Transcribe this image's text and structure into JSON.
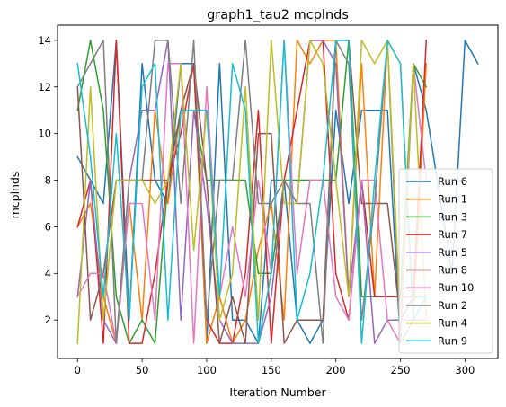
{
  "chart_data": {
    "type": "line",
    "title": "graph1_tau2 mcplnds",
    "xlabel": "Iteration Number",
    "ylabel": "mcplnds",
    "xlim": [
      -15.5,
      325.5
    ],
    "ylim": [
      0.35,
      14.65
    ],
    "x_ticks": [
      0,
      50,
      100,
      150,
      200,
      250,
      300
    ],
    "y_ticks": [
      2,
      4,
      6,
      8,
      10,
      12,
      14
    ],
    "grid": false,
    "legend_position": "lower right",
    "series": [
      {
        "name": "Run 6",
        "color": "#1f77b4",
        "points": [
          [
            0,
            9
          ],
          [
            10,
            8
          ],
          [
            20,
            7
          ],
          [
            30,
            14
          ],
          [
            40,
            2
          ],
          [
            50,
            13
          ],
          [
            60,
            8
          ],
          [
            70,
            7
          ],
          [
            80,
            13
          ],
          [
            90,
            13
          ],
          [
            100,
            1
          ],
          [
            110,
            13
          ],
          [
            120,
            2
          ],
          [
            130,
            2
          ],
          [
            140,
            1
          ],
          [
            150,
            8
          ],
          [
            160,
            8
          ],
          [
            170,
            2
          ],
          [
            180,
            1
          ],
          [
            190,
            2
          ],
          [
            200,
            11
          ],
          [
            210,
            7
          ],
          [
            220,
            11
          ],
          [
            230,
            11
          ],
          [
            240,
            11
          ],
          [
            250,
            1
          ],
          [
            260,
            13
          ],
          [
            270,
            11
          ],
          [
            290,
            4
          ],
          [
            300,
            14
          ],
          [
            310,
            13
          ]
        ]
      },
      {
        "name": "Run 1",
        "color": "#ff7f0e",
        "points": [
          [
            0,
            6
          ],
          [
            10,
            7
          ],
          [
            20,
            3
          ],
          [
            30,
            1
          ],
          [
            40,
            7
          ],
          [
            50,
            2
          ],
          [
            60,
            11
          ],
          [
            70,
            7
          ],
          [
            80,
            11
          ],
          [
            90,
            13
          ],
          [
            100,
            1
          ],
          [
            110,
            3
          ],
          [
            120,
            1
          ],
          [
            130,
            2
          ],
          [
            140,
            5
          ],
          [
            150,
            7
          ],
          [
            160,
            2
          ],
          [
            170,
            14
          ],
          [
            180,
            13
          ],
          [
            190,
            14
          ],
          [
            200,
            14
          ],
          [
            210,
            3
          ],
          [
            220,
            13
          ],
          [
            230,
            3
          ],
          [
            240,
            14
          ],
          [
            250,
            13
          ],
          [
            260,
            2
          ],
          [
            270,
            13
          ]
        ]
      },
      {
        "name": "Run 3",
        "color": "#2ca02c",
        "points": [
          [
            0,
            11
          ],
          [
            10,
            14
          ],
          [
            20,
            11
          ],
          [
            30,
            3
          ],
          [
            40,
            1
          ],
          [
            50,
            2
          ],
          [
            60,
            1
          ],
          [
            70,
            8
          ],
          [
            80,
            11
          ],
          [
            90,
            11
          ],
          [
            100,
            8
          ],
          [
            110,
            8
          ],
          [
            120,
            8
          ],
          [
            130,
            8
          ],
          [
            140,
            4
          ],
          [
            150,
            4
          ],
          [
            160,
            8
          ],
          [
            170,
            8
          ],
          [
            180,
            8
          ],
          [
            190,
            8
          ],
          [
            200,
            8
          ],
          [
            210,
            14
          ],
          [
            220,
            3
          ],
          [
            230,
            3
          ],
          [
            240,
            3
          ],
          [
            250,
            3
          ],
          [
            260,
            13
          ],
          [
            270,
            12
          ]
        ]
      },
      {
        "name": "Run 7",
        "color": "#d62728",
        "points": [
          [
            0,
            6
          ],
          [
            10,
            8
          ],
          [
            20,
            1
          ],
          [
            30,
            14
          ],
          [
            40,
            1
          ],
          [
            50,
            1
          ],
          [
            60,
            4
          ],
          [
            70,
            8
          ],
          [
            80,
            10
          ],
          [
            90,
            13
          ],
          [
            100,
            2
          ],
          [
            110,
            1
          ],
          [
            120,
            1
          ],
          [
            130,
            4
          ],
          [
            140,
            11
          ],
          [
            150,
            1
          ],
          [
            160,
            8
          ],
          [
            170,
            11
          ],
          [
            180,
            14
          ],
          [
            190,
            14
          ],
          [
            200,
            4
          ],
          [
            210,
            2
          ],
          [
            220,
            8
          ],
          [
            230,
            3
          ],
          [
            240,
            3
          ],
          [
            250,
            3
          ],
          [
            260,
            3
          ],
          [
            270,
            14
          ]
        ]
      },
      {
        "name": "Run 5",
        "color": "#9467bd",
        "points": [
          [
            0,
            3
          ],
          [
            10,
            8
          ],
          [
            20,
            2
          ],
          [
            30,
            1
          ],
          [
            40,
            8
          ],
          [
            50,
            11
          ],
          [
            60,
            11
          ],
          [
            70,
            14
          ],
          [
            80,
            2
          ],
          [
            90,
            11
          ],
          [
            100,
            7
          ],
          [
            110,
            2
          ],
          [
            120,
            1
          ],
          [
            130,
            1
          ],
          [
            140,
            1
          ],
          [
            150,
            3
          ],
          [
            160,
            8
          ],
          [
            170,
            7
          ],
          [
            180,
            14
          ],
          [
            190,
            14
          ],
          [
            200,
            13
          ],
          [
            210,
            3
          ],
          [
            220,
            8
          ],
          [
            230,
            1
          ],
          [
            240,
            2
          ],
          [
            250,
            2
          ],
          [
            260,
            2
          ],
          [
            270,
            2
          ]
        ]
      },
      {
        "name": "Run 8",
        "color": "#8c564b",
        "points": [
          [
            0,
            12
          ],
          [
            10,
            2
          ],
          [
            20,
            4
          ],
          [
            30,
            8
          ],
          [
            40,
            8
          ],
          [
            50,
            8
          ],
          [
            60,
            8
          ],
          [
            70,
            8
          ],
          [
            80,
            11
          ],
          [
            90,
            13
          ],
          [
            100,
            8
          ],
          [
            110,
            1
          ],
          [
            120,
            3
          ],
          [
            130,
            1
          ],
          [
            140,
            10
          ],
          [
            150,
            10
          ],
          [
            160,
            1
          ],
          [
            170,
            2
          ],
          [
            180,
            2
          ],
          [
            190,
            2
          ],
          [
            200,
            14
          ],
          [
            210,
            14
          ],
          [
            220,
            7
          ],
          [
            230,
            7
          ],
          [
            240,
            7
          ],
          [
            250,
            2
          ],
          [
            260,
            3
          ],
          [
            270,
            3
          ]
        ]
      },
      {
        "name": "Run 10",
        "color": "#e377c2",
        "points": [
          [
            0,
            3
          ],
          [
            10,
            4
          ],
          [
            20,
            4
          ],
          [
            30,
            1
          ],
          [
            40,
            7
          ],
          [
            50,
            7
          ],
          [
            60,
            2
          ],
          [
            70,
            13
          ],
          [
            80,
            13
          ],
          [
            90,
            1
          ],
          [
            100,
            12
          ],
          [
            110,
            3
          ],
          [
            120,
            6
          ],
          [
            130,
            3
          ],
          [
            140,
            8
          ],
          [
            150,
            4
          ],
          [
            160,
            14
          ],
          [
            170,
            4
          ],
          [
            180,
            8
          ],
          [
            190,
            8
          ],
          [
            200,
            3
          ],
          [
            210,
            2
          ],
          [
            220,
            8
          ],
          [
            230,
            8
          ],
          [
            240,
            2
          ],
          [
            250,
            1
          ],
          [
            260,
            13
          ],
          [
            270,
            8
          ]
        ]
      },
      {
        "name": "Run 2",
        "color": "#7f7f7f",
        "points": [
          [
            0,
            12
          ],
          [
            10,
            13
          ],
          [
            20,
            14
          ],
          [
            30,
            1
          ],
          [
            40,
            8
          ],
          [
            50,
            8
          ],
          [
            60,
            14
          ],
          [
            70,
            14
          ],
          [
            80,
            7
          ],
          [
            90,
            14
          ],
          [
            100,
            2
          ],
          [
            110,
            8
          ],
          [
            120,
            8
          ],
          [
            130,
            14
          ],
          [
            140,
            7
          ],
          [
            150,
            7
          ],
          [
            160,
            8
          ],
          [
            170,
            7
          ],
          [
            180,
            7
          ],
          [
            190,
            1
          ],
          [
            200,
            14
          ],
          [
            210,
            13
          ],
          [
            220,
            2
          ],
          [
            230,
            7
          ],
          [
            240,
            14
          ],
          [
            250,
            1
          ],
          [
            260,
            2
          ],
          [
            270,
            3
          ]
        ]
      },
      {
        "name": "Run 4",
        "color": "#bcbd22",
        "points": [
          [
            0,
            1
          ],
          [
            10,
            12
          ],
          [
            20,
            2
          ],
          [
            30,
            8
          ],
          [
            40,
            8
          ],
          [
            50,
            8
          ],
          [
            60,
            7
          ],
          [
            70,
            8
          ],
          [
            80,
            13
          ],
          [
            90,
            5
          ],
          [
            100,
            11
          ],
          [
            110,
            2
          ],
          [
            120,
            4
          ],
          [
            130,
            12
          ],
          [
            140,
            2
          ],
          [
            150,
            14
          ],
          [
            160,
            7
          ],
          [
            170,
            7
          ],
          [
            180,
            14
          ],
          [
            190,
            13
          ],
          [
            200,
            8
          ],
          [
            210,
            3
          ],
          [
            220,
            14
          ],
          [
            230,
            13
          ],
          [
            240,
            14
          ],
          [
            250,
            2
          ],
          [
            260,
            13
          ],
          [
            270,
            2
          ]
        ]
      },
      {
        "name": "Run 9",
        "color": "#17becf",
        "points": [
          [
            0,
            13
          ],
          [
            10,
            9
          ],
          [
            20,
            3
          ],
          [
            30,
            10
          ],
          [
            40,
            2
          ],
          [
            50,
            12
          ],
          [
            60,
            13
          ],
          [
            70,
            2
          ],
          [
            80,
            11
          ],
          [
            90,
            11
          ],
          [
            100,
            11
          ],
          [
            110,
            3
          ],
          [
            120,
            13
          ],
          [
            130,
            11
          ],
          [
            140,
            1
          ],
          [
            150,
            4
          ],
          [
            160,
            14
          ],
          [
            170,
            2
          ],
          [
            180,
            4
          ],
          [
            190,
            8
          ],
          [
            200,
            14
          ],
          [
            210,
            14
          ],
          [
            220,
            1
          ],
          [
            230,
            8
          ],
          [
            240,
            14
          ],
          [
            250,
            13
          ],
          [
            260,
            2
          ],
          [
            270,
            3
          ]
        ]
      }
    ]
  }
}
